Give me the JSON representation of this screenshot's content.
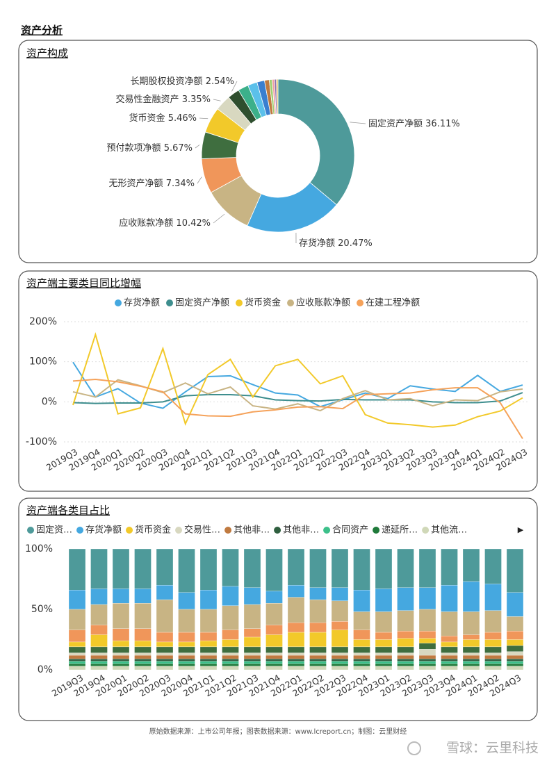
{
  "title": "资产分析",
  "chart_data": [
    {
      "type": "pie",
      "title": "资产构成",
      "categories": [
        "固定资产净额",
        "存货净额",
        "应收账款净额",
        "无形资产净额",
        "预付款项净额",
        "货币资金",
        "交易性金融资产",
        "长期股权投资净额",
        null,
        null,
        null,
        null,
        null,
        null,
        null,
        null
      ],
      "values": [
        36.11,
        20.47,
        10.42,
        7.34,
        5.67,
        5.46,
        3.35,
        2.54,
        2.2,
        2.0,
        1.6,
        1.0,
        0.6,
        0.5,
        0.4,
        0.34
      ],
      "value_labels": [
        "36.11%",
        "20.47%",
        "10.42%",
        "7.34%",
        "5.67%",
        "5.46%",
        "3.35%",
        "2.54%",
        null,
        null,
        null,
        null,
        null,
        null,
        null,
        null
      ],
      "colors": [
        "#4e9a9a",
        "#45a8e0",
        "#c8b484",
        "#f0965a",
        "#3f6e3f",
        "#f2c92a",
        "#d8d8c0",
        "#2f4f2f",
        "#3cb08a",
        "#5bc0ea",
        "#3a7fd0",
        "#c07a40",
        "#a0d070",
        "#f0a0a0",
        "#8a6fb0",
        "#e0c060"
      ]
    },
    {
      "type": "line",
      "title": "资产端主要类目同比增幅",
      "categories": [
        "2019Q3",
        "2019Q4",
        "2020Q1",
        "2020Q2",
        "2020Q3",
        "2020Q4",
        "2021Q1",
        "2021Q2",
        "2021Q3",
        "2021Q4",
        "2022Q1",
        "2022Q2",
        "2022Q3",
        "2022Q4",
        "2023Q1",
        "2023Q2",
        "2023Q3",
        "2023Q4",
        "2024Q1",
        "2024Q2",
        "2024Q3"
      ],
      "series": [
        {
          "name": "存货净额",
          "color": "#45a8e0",
          "values": [
            99,
            12,
            33,
            -3,
            -16,
            25,
            63,
            65,
            43,
            22,
            17,
            -12,
            5,
            22,
            8,
            40,
            32,
            26,
            66,
            26,
            42
          ]
        },
        {
          "name": "固定资产净额",
          "color": "#3e8e8e",
          "values": [
            -2,
            -4,
            -3,
            -3,
            0,
            15,
            18,
            18,
            15,
            5,
            3,
            2,
            6,
            5,
            5,
            5,
            0,
            -2,
            -2,
            2,
            23
          ]
        },
        {
          "name": "货币资金",
          "color": "#f2c92a",
          "values": [
            -8,
            168,
            -30,
            -15,
            133,
            -55,
            68,
            106,
            12,
            90,
            106,
            45,
            65,
            -32,
            -53,
            -57,
            -63,
            -58,
            -37,
            -23,
            10
          ]
        },
        {
          "name": "应收账款净额",
          "color": "#c8b484",
          "values": [
            25,
            12,
            55,
            40,
            23,
            47,
            20,
            37,
            -10,
            -18,
            -5,
            -22,
            8,
            28,
            5,
            8,
            -10,
            5,
            3,
            25,
            32
          ]
        },
        {
          "name": "在建工程净额",
          "color": "#f5a25a",
          "values": [
            52,
            56,
            50,
            39,
            25,
            -30,
            -35,
            -36,
            -25,
            -20,
            -13,
            -12,
            -17,
            18,
            20,
            22,
            30,
            35,
            35,
            -2,
            -92
          ]
        }
      ],
      "ylim": [
        -100,
        200
      ],
      "yticks": [
        {
          "value": -100,
          "label": "-100%"
        },
        {
          "value": 0,
          "label": "0%"
        },
        {
          "value": 100,
          "label": "100%"
        },
        {
          "value": 200,
          "label": "200%"
        }
      ],
      "grid": true
    },
    {
      "type": "stacked_bar",
      "title": "资产端各类目占比",
      "categories": [
        "2019Q3",
        "2019Q4",
        "2020Q1",
        "2020Q2",
        "2020Q3",
        "2020Q4",
        "2021Q1",
        "2021Q2",
        "2021Q3",
        "2021Q4",
        "2022Q1",
        "2022Q2",
        "2022Q3",
        "2022Q4",
        "2023Q1",
        "2023Q2",
        "2023Q3",
        "2023Q4",
        "2024Q1",
        "2024Q2",
        "2024Q3"
      ],
      "series": [
        {
          "name": "固定资…",
          "color": "#4e9a9a",
          "values": [
            34,
            33,
            33,
            33,
            30,
            36,
            34,
            31,
            32,
            35,
            30,
            32,
            32,
            34,
            33,
            32,
            32,
            30,
            27,
            29,
            36
          ]
        },
        {
          "name": "存货净额",
          "color": "#45a8e0",
          "values": [
            16,
            13,
            12,
            12,
            12,
            14,
            16,
            16,
            14,
            10,
            10,
            10,
            11,
            18,
            19,
            19,
            18,
            22,
            25,
            22,
            20
          ]
        },
        {
          "name": null,
          "color": "#c8b484",
          "values": [
            17,
            17,
            21,
            21,
            27,
            19,
            19,
            20,
            20,
            18,
            21,
            19,
            17,
            15,
            17,
            17,
            18,
            20,
            19,
            18,
            12
          ]
        },
        {
          "name": null,
          "color": "#f0965a",
          "values": [
            10,
            8,
            10,
            10,
            8,
            8,
            7,
            8,
            7,
            8,
            8,
            8,
            7,
            8,
            6,
            6,
            6,
            5,
            4,
            6,
            7
          ]
        },
        {
          "name": "货币资金",
          "color": "#f2c92a",
          "values": [
            4,
            10,
            5,
            5,
            4,
            4,
            5,
            6,
            8,
            10,
            12,
            12,
            14,
            6,
            6,
            7,
            4,
            4,
            6,
            6,
            5
          ]
        },
        {
          "name": null,
          "color": "#3f6e3f",
          "values": [
            5,
            5,
            5,
            5,
            5,
            5,
            5,
            5,
            5,
            5,
            5,
            5,
            5,
            5,
            5,
            5,
            5,
            5,
            5,
            5,
            5
          ]
        },
        {
          "name": "交易性…",
          "color": "#d8d8c0",
          "values": [
            2,
            2,
            2,
            2,
            2,
            2,
            2,
            2,
            2,
            2,
            2,
            2,
            2,
            2,
            2,
            2,
            5,
            2,
            2,
            2,
            3
          ]
        },
        {
          "name": "其他非…",
          "color": "#c07a40",
          "values": [
            3,
            3,
            3,
            3,
            3,
            3,
            3,
            3,
            3,
            3,
            3,
            3,
            3,
            3,
            3,
            3,
            3,
            3,
            3,
            3,
            3
          ]
        },
        {
          "name": "其他非…",
          "color": "#2f5f3f",
          "values": [
            2,
            2,
            2,
            2,
            2,
            2,
            2,
            2,
            2,
            2,
            2,
            2,
            2,
            2,
            2,
            2,
            2,
            2,
            2,
            2,
            2
          ]
        },
        {
          "name": "合同资产",
          "color": "#3cc08a",
          "values": [
            2,
            2,
            2,
            2,
            2,
            2,
            2,
            2,
            2,
            2,
            2,
            2,
            2,
            2,
            2,
            2,
            2,
            2,
            2,
            2,
            2
          ]
        },
        {
          "name": "递延所…",
          "color": "#1f7a3a",
          "values": [
            2,
            2,
            2,
            2,
            2,
            2,
            2,
            2,
            2,
            2,
            2,
            2,
            2,
            2,
            2,
            2,
            2,
            2,
            2,
            2,
            2
          ]
        },
        {
          "name": "其他流…",
          "color": "#d0d8b8",
          "values": [
            3,
            3,
            3,
            3,
            3,
            3,
            3,
            3,
            3,
            3,
            3,
            3,
            3,
            3,
            3,
            3,
            3,
            3,
            3,
            3,
            3
          ]
        }
      ],
      "ylim": [
        0,
        100
      ],
      "yticks": [
        {
          "value": 0,
          "label": "0%"
        },
        {
          "value": 50,
          "label": "50%"
        },
        {
          "value": 100,
          "label": "100%"
        }
      ]
    }
  ],
  "footer": "原始数据来源：上市公司年报；图表数据来源：www.lcreport.cn；制图：云里财经",
  "watermark": "雪球：云里科技"
}
